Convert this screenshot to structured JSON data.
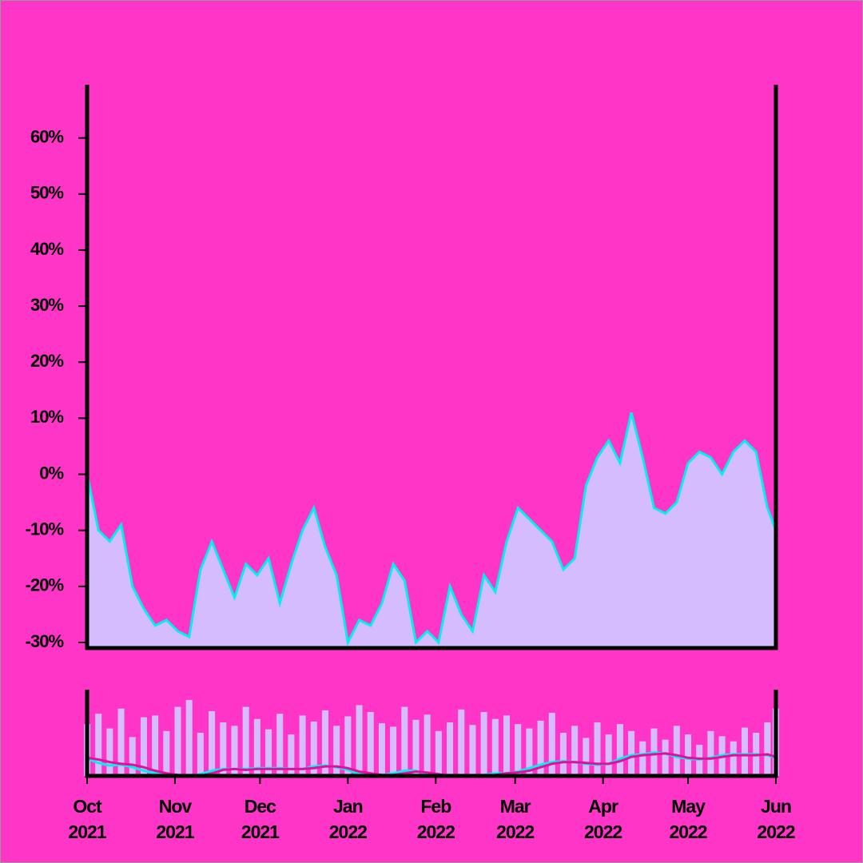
{
  "chart_data": [
    {
      "type": "area",
      "x": [
        0,
        4,
        8,
        12,
        16,
        20,
        24,
        28,
        32,
        36,
        40,
        44,
        48,
        52,
        56,
        60,
        64,
        68,
        72,
        76,
        80,
        84,
        88,
        92,
        96,
        100,
        104,
        108,
        112,
        116,
        120,
        124,
        128,
        132,
        136,
        140,
        144,
        148,
        152,
        156,
        160,
        164,
        168,
        172,
        176,
        180,
        184,
        188,
        192,
        196,
        200,
        204,
        208,
        212,
        216,
        220,
        224,
        228,
        232,
        236,
        240,
        243
      ],
      "values": [
        0,
        -10,
        -12,
        -9,
        -20,
        -24,
        -27,
        -26,
        -28,
        -29,
        -17,
        -12,
        -17,
        -22,
        -16,
        -18,
        -15,
        -23,
        -16,
        -10,
        -6,
        -13,
        -18,
        -30,
        -26,
        -27,
        -23,
        -16,
        -19,
        -30,
        -28,
        -30,
        -20,
        -25,
        -28,
        -18,
        -21,
        -12,
        -6,
        -8,
        -10,
        -12,
        -17,
        -15,
        -2,
        3,
        6,
        2,
        11,
        3,
        -6,
        -7,
        -5,
        2,
        4,
        3,
        0,
        4,
        6,
        4,
        -6,
        -10
      ],
      "fill_color": "#d4bcff",
      "line_color": "#00f0f0",
      "xlim": [
        0,
        243
      ],
      "ylim": [
        -31,
        69.5
      ],
      "yticks": [
        {
          "value": -30,
          "label": "-30%"
        },
        {
          "value": -20,
          "label": "-20%"
        },
        {
          "value": -10,
          "label": "-10%"
        },
        {
          "value": 0,
          "label": "0%"
        },
        {
          "value": 10,
          "label": "10%"
        },
        {
          "value": 20,
          "label": "20%"
        },
        {
          "value": 30,
          "label": "30%"
        },
        {
          "value": 40,
          "label": "40%"
        },
        {
          "value": 50,
          "label": "50%"
        },
        {
          "value": 60,
          "label": "60%"
        }
      ]
    },
    {
      "type": "volume",
      "x": [
        0,
        4,
        8,
        12,
        16,
        20,
        24,
        28,
        32,
        36,
        40,
        44,
        48,
        52,
        56,
        60,
        64,
        68,
        72,
        76,
        80,
        84,
        88,
        92,
        96,
        100,
        104,
        108,
        112,
        116,
        120,
        124,
        128,
        132,
        136,
        140,
        144,
        148,
        152,
        156,
        160,
        164,
        168,
        172,
        176,
        180,
        184,
        188,
        192,
        196,
        200,
        204,
        208,
        212,
        216,
        220,
        224,
        228,
        232,
        236,
        240,
        243
      ],
      "series": [
        {
          "type": "bar",
          "color": "#d4bcff",
          "values": [
            60,
            72,
            55,
            78,
            45,
            68,
            70,
            52,
            80,
            88,
            50,
            75,
            62,
            58,
            80,
            66,
            54,
            72,
            48,
            70,
            63,
            76,
            58,
            69,
            82,
            74,
            61,
            57,
            80,
            65,
            71,
            52,
            62,
            77,
            59,
            74,
            66,
            70,
            60,
            55,
            64,
            73,
            50,
            58,
            44,
            62,
            48,
            60,
            52,
            40,
            55,
            42,
            58,
            48,
            36,
            52,
            46,
            40,
            56,
            50,
            62,
            78
          ]
        },
        {
          "type": "line",
          "color": "#00f0f0",
          "values": [
            20,
            15,
            12,
            13,
            10,
            6,
            3,
            2,
            1,
            0,
            2,
            6,
            8,
            8,
            8,
            9,
            9,
            9,
            8,
            8,
            11,
            12,
            10,
            7,
            2,
            1,
            1,
            3,
            6,
            6,
            2,
            0,
            0,
            0,
            0,
            1,
            3,
            3,
            5,
            9,
            13,
            16,
            17,
            16,
            14,
            13,
            14,
            20,
            24,
            25,
            27,
            26,
            22,
            20,
            19,
            21,
            24,
            25,
            25,
            25,
            24,
            21
          ]
        },
        {
          "type": "line",
          "color": "#e0109a",
          "values": [
            21,
            19,
            16,
            14,
            13,
            10,
            6,
            3,
            1,
            0,
            0,
            3,
            7,
            8,
            7,
            8,
            8,
            8,
            8,
            8,
            9,
            11,
            11,
            9,
            5,
            3,
            1,
            1,
            3,
            5,
            4,
            2,
            0,
            0,
            0,
            0,
            1,
            3,
            4,
            6,
            10,
            14,
            16,
            16,
            15,
            14,
            14,
            17,
            22,
            24,
            25,
            26,
            24,
            21,
            20,
            20,
            22,
            24,
            24,
            24,
            25,
            22
          ]
        }
      ],
      "xlim": [
        0,
        243
      ],
      "ylim": [
        0,
        100
      ],
      "xticks": [
        {
          "value": 0,
          "label": "Oct 2021"
        },
        {
          "value": 31,
          "label": "Nov 2021"
        },
        {
          "value": 61,
          "label": "Dec 2021"
        },
        {
          "value": 92,
          "label": "Jan 2022"
        },
        {
          "value": 123,
          "label": "Feb 2022"
        },
        {
          "value": 151,
          "label": "Mar 2022"
        },
        {
          "value": 182,
          "label": "Apr 2022"
        },
        {
          "value": 212,
          "label": "May 2022"
        },
        {
          "value": 243,
          "label": "Jun 2022"
        }
      ]
    }
  ]
}
